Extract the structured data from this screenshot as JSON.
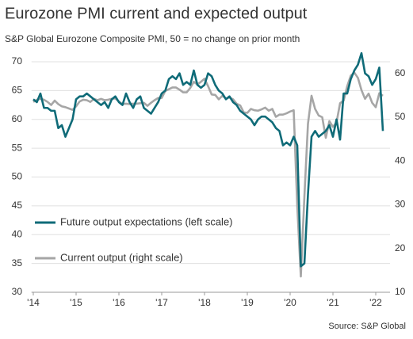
{
  "chart_data": {
    "type": "line",
    "title": "Eurozone PMI current and expected output",
    "subtitle": "S&P Global Eurozone Composite PMI, 50 = no change on prior month",
    "source": "Source: S&P Global",
    "xlim": [
      -0.5,
      100
    ],
    "xticks": [
      {
        "value": 0,
        "label": "'14"
      },
      {
        "value": 12,
        "label": "'15"
      },
      {
        "value": 24,
        "label": "'16"
      },
      {
        "value": 36,
        "label": "'17"
      },
      {
        "value": 48,
        "label": "'18"
      },
      {
        "value": 60,
        "label": "'19"
      },
      {
        "value": 72,
        "label": "'20"
      },
      {
        "value": 84,
        "label": "'21"
      },
      {
        "value": 96,
        "label": "'22"
      }
    ],
    "ylim": [
      30,
      72
    ],
    "yticks": [
      30,
      35,
      40,
      45,
      50,
      55,
      60,
      65,
      70
    ],
    "y2lim": [
      10,
      65.3
    ],
    "y2ticks": [
      10,
      20,
      30,
      40,
      50,
      60
    ],
    "grid": true,
    "series": [
      {
        "name": "Future output expectations (left scale)",
        "color": "#0f6b78",
        "axis": "y",
        "values": [
          63.5,
          63,
          64.5,
          62,
          62,
          61.5,
          61.5,
          58.5,
          59,
          57,
          58.5,
          60,
          63.5,
          64,
          64,
          64.5,
          64,
          63.5,
          63,
          62.5,
          63,
          62,
          63.5,
          64,
          63,
          62.5,
          64.5,
          63,
          62,
          63.5,
          64,
          62,
          61.5,
          61,
          62,
          63,
          64.5,
          65,
          67,
          67.5,
          67,
          68,
          66,
          66.5,
          66,
          68.5,
          66,
          65.5,
          66,
          68,
          67.5,
          66,
          65,
          64.5,
          63.5,
          64,
          63,
          62.5,
          61.5,
          61,
          60.5,
          60,
          59,
          60,
          60.5,
          60.5,
          60,
          59.5,
          58.5,
          58,
          55.5,
          56,
          55.5,
          57,
          55.5,
          34.5,
          35,
          47,
          57,
          58,
          57,
          57.5,
          58,
          59,
          57,
          60,
          56.5,
          64.5,
          64.5,
          67,
          68.5,
          69.5,
          71.5,
          68,
          67.5,
          66,
          67,
          69,
          58
        ]
      },
      {
        "name": "Current output (right scale)",
        "color": "#a6a6a6",
        "axis": "y2",
        "values": [
          53.5,
          54,
          54.2,
          54,
          53.5,
          52.8,
          53.8,
          53,
          52.5,
          52.3,
          52,
          51.7,
          52.5,
          53.6,
          54,
          53.9,
          53.5,
          54.2,
          53.9,
          54.2,
          53.9,
          54,
          54.2,
          54.3,
          53.6,
          53,
          53.1,
          53,
          53.1,
          53.1,
          53.2,
          53.3,
          52.6,
          53.3,
          53.9,
          54.4,
          54.4,
          56,
          56.4,
          56.8,
          56.8,
          56.3,
          55.7,
          55.7,
          56.7,
          58.1,
          57.5,
          58.1,
          58.8,
          57.1,
          55.2,
          55.1,
          54.1,
          54.9,
          54.3,
          54.5,
          54.1,
          53.1,
          52.7,
          51.1,
          51,
          51.9,
          51.6,
          51.5,
          51.8,
          52.2,
          51.5,
          51.9,
          50.1,
          50.6,
          50.6,
          50.9,
          51.3,
          51.6,
          29.7,
          13.6,
          31.9,
          48.5,
          54.9,
          51.9,
          50.4,
          50,
          45.3,
          49.1,
          47.8,
          48.8,
          53.2,
          53.8,
          57.1,
          59.5,
          60.2,
          59,
          56.2,
          54.2,
          55.4,
          53.3,
          52.3,
          55.5,
          54.9
        ]
      }
    ]
  }
}
